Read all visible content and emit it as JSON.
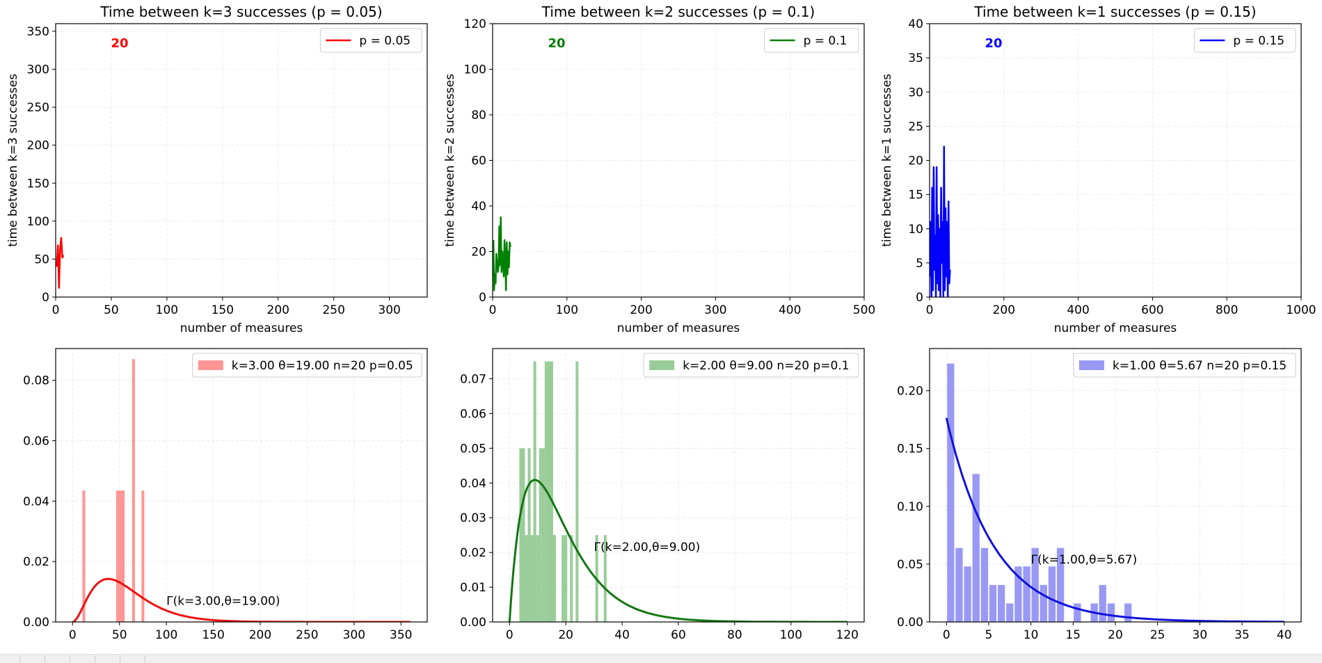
{
  "figure": {
    "background": "#ffffff"
  },
  "chart_data": [
    {
      "type": "line",
      "title": "Time between k=3 successes (p = 0.05)",
      "xlabel": "number of measures",
      "ylabel": "time between k=3 successes",
      "xlim": [
        0,
        334
      ],
      "ylim": [
        0,
        360
      ],
      "xticks": [
        0,
        50,
        100,
        150,
        200,
        250,
        300
      ],
      "yticks": [
        0,
        50,
        100,
        150,
        200,
        250,
        300,
        350
      ],
      "grid": true,
      "legend": {
        "label": "p = 0.05",
        "position": "top-right"
      },
      "color": "#ff0000",
      "annotation": "20",
      "x": [
        1,
        2,
        3,
        4,
        5,
        6,
        7
      ],
      "y": [
        40,
        68,
        12,
        63,
        78,
        52,
        55
      ]
    },
    {
      "type": "line",
      "title": "Time between k=2 successes (p = 0.1)",
      "xlabel": "number of measures",
      "ylabel": "time between k=2 successes",
      "xlim": [
        0,
        500
      ],
      "ylim": [
        0,
        120
      ],
      "xticks": [
        0,
        100,
        200,
        300,
        400,
        500
      ],
      "yticks": [
        0,
        20,
        40,
        60,
        80,
        100,
        120
      ],
      "grid": true,
      "legend": {
        "label": "p = 0.1",
        "position": "top-right"
      },
      "color": "#008000",
      "annotation": "20",
      "x": [
        1,
        2,
        3,
        4,
        5,
        6,
        7,
        8,
        9,
        10,
        11,
        12,
        13,
        14,
        15,
        16,
        17,
        18,
        19,
        20,
        21,
        22,
        23,
        24
      ],
      "y": [
        25,
        3,
        10,
        6,
        19,
        15,
        11,
        13,
        31,
        14,
        35,
        11,
        20,
        15,
        9,
        25,
        17,
        3,
        24,
        10,
        20,
        13,
        24,
        22
      ]
    },
    {
      "type": "line",
      "title": "Time between k=1 successes (p = 0.15)",
      "xlabel": "number of measures",
      "ylabel": "time between k=1 successes",
      "xlim": [
        0,
        1000
      ],
      "ylim": [
        0,
        40
      ],
      "xticks": [
        0,
        200,
        400,
        600,
        800,
        1000
      ],
      "yticks": [
        0,
        5,
        10,
        15,
        20,
        25,
        30,
        35,
        40
      ],
      "grid": true,
      "legend": {
        "label": "p = 0.15",
        "position": "top-right"
      },
      "color": "#0000ff",
      "annotation": "20",
      "x": [
        1,
        3,
        5,
        7,
        9,
        11,
        13,
        15,
        17,
        19,
        21,
        23,
        25,
        27,
        29,
        31,
        33,
        35,
        37,
        39,
        41,
        43,
        45,
        47,
        49,
        51,
        53,
        55
      ],
      "y": [
        3,
        11,
        0,
        16,
        1,
        19,
        4,
        9,
        0,
        19,
        2,
        12,
        1,
        10,
        0,
        16,
        5,
        11,
        0,
        22,
        1,
        13,
        3,
        11,
        0,
        14,
        2,
        4
      ]
    },
    {
      "type": "bar",
      "xlim": [
        -18,
        378
      ],
      "ylim": [
        0,
        0.0905
      ],
      "xticks": [
        0,
        50,
        100,
        150,
        200,
        250,
        300,
        350
      ],
      "yticks": [
        0.0,
        0.02,
        0.04,
        0.06,
        0.08
      ],
      "ytick_labels": [
        "0.00",
        "0.02",
        "0.04",
        "0.06",
        "0.08"
      ],
      "grid": true,
      "legend": {
        "label": "k=3.00 θ=19.00 n=20 p=0.05",
        "position": "top-right"
      },
      "bar_color": "#ff9595",
      "curve_color": "#ee1111",
      "bar_width": 3,
      "bars": {
        "x": [
          12,
          48,
          51,
          54,
          65,
          75
        ],
        "height": [
          0.0435,
          0.0435,
          0.0435,
          0.0435,
          0.087,
          0.0435
        ]
      },
      "curve": {
        "label": "Γ(k=3.00,θ=19.00)",
        "k": 3,
        "theta": 19,
        "x_from": 0,
        "x_to": 360
      },
      "curve_label_at": [
        100,
        0.0056
      ]
    },
    {
      "type": "bar",
      "xlim": [
        -6,
        126
      ],
      "ylim": [
        0,
        0.0787
      ],
      "xticks": [
        0,
        20,
        40,
        60,
        80,
        100,
        120
      ],
      "yticks": [
        0.0,
        0.01,
        0.02,
        0.03,
        0.04,
        0.05,
        0.06,
        0.07
      ],
      "ytick_labels": [
        "0.00",
        "0.01",
        "0.02",
        "0.03",
        "0.04",
        "0.05",
        "0.06",
        "0.07"
      ],
      "grid": true,
      "legend": {
        "label": "k=2.00 θ=9.00 n=20 p=0.1",
        "position": "top-right"
      },
      "bar_color": "#99cc99",
      "curve_color": "#117711",
      "bar_width": 1,
      "bars": {
        "x": [
          4,
          5,
          6,
          7,
          8,
          9,
          10,
          11,
          12,
          13,
          14,
          15,
          16,
          19,
          20,
          22,
          24,
          31,
          34
        ],
        "height": [
          0.05,
          0.05,
          0.025,
          0.05,
          0.025,
          0.075,
          0.025,
          0.05,
          0.05,
          0.075,
          0.075,
          0.075,
          0.025,
          0.025,
          0.025,
          0.025,
          0.075,
          0.025,
          0.025
        ]
      },
      "curve": {
        "label": "Γ(k=2.00,θ=9.00)",
        "k": 2,
        "theta": 9,
        "x_from": 0,
        "x_to": 120
      },
      "curve_label_at": [
        30,
        0.0204
      ]
    },
    {
      "type": "bar",
      "xlim": [
        -2,
        42
      ],
      "ylim": [
        0,
        0.2365
      ],
      "xticks": [
        0,
        5,
        10,
        15,
        20,
        25,
        30,
        35,
        40
      ],
      "yticks": [
        0.0,
        0.05,
        0.1,
        0.15,
        0.2
      ],
      "ytick_labels": [
        "0.00",
        "0.05",
        "0.10",
        "0.15",
        "0.20"
      ],
      "grid": true,
      "legend": {
        "label": "k=1.00 θ=5.67 n=20 p=0.15",
        "position": "top-right"
      },
      "bar_color": "#9999f5",
      "curve_color": "#1111dd",
      "bar_width": 0.85,
      "bars": {
        "x": [
          0.5,
          1.5,
          2.5,
          3.5,
          4.5,
          5.5,
          6.5,
          7.5,
          8.5,
          9.5,
          10.5,
          11.5,
          12.5,
          13.5,
          15.5,
          17.5,
          18.5,
          19.5,
          21.5
        ],
        "height": [
          0.2235,
          0.064,
          0.048,
          0.128,
          0.064,
          0.032,
          0.032,
          0.016,
          0.048,
          0.048,
          0.064,
          0.032,
          0.048,
          0.064,
          0.016,
          0.016,
          0.032,
          0.016,
          0.016
        ]
      },
      "curve": {
        "label": "Γ(k=1.00,θ=5.67)",
        "k": 1,
        "theta": 5.67,
        "x_from": 0,
        "x_to": 40
      },
      "curve_label_at": [
        10,
        0.0505
      ]
    }
  ]
}
